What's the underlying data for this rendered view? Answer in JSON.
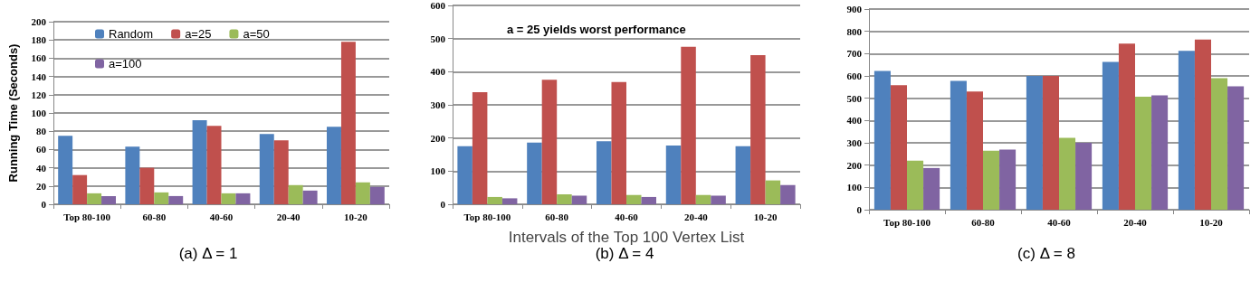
{
  "chart_data": [
    {
      "type": "bar",
      "title": "(a) Δ = 1",
      "ylabel": "Running Time (Seconds)",
      "categories": [
        "Top 80-100",
        "60-80",
        "40-60",
        "20-40",
        "10-20"
      ],
      "ylim": [
        0,
        200
      ],
      "yticks": [
        0,
        20,
        40,
        60,
        80,
        100,
        120,
        140,
        160,
        180,
        200
      ],
      "grid": "y",
      "legend": "top",
      "series": [
        {
          "name": "Random",
          "color": "#4f81bd",
          "values": [
            75,
            63,
            92,
            77,
            85
          ]
        },
        {
          "name": "a=25",
          "color": "#c0504d",
          "values": [
            32,
            40,
            86,
            70,
            178
          ]
        },
        {
          "name": "a=50",
          "color": "#9bbb59",
          "values": [
            12,
            13,
            12,
            21,
            24
          ]
        },
        {
          "name": "a=100",
          "color": "#8064a2",
          "values": [
            9,
            9,
            12,
            15,
            19
          ]
        }
      ]
    },
    {
      "type": "bar",
      "title": "(b) Δ = 4",
      "xlabel": "Intervals of the Top 100 Vertex List",
      "annotations": [
        "a = 25 yields worst performance"
      ],
      "categories": [
        "Top 80-100",
        "60-80",
        "40-60",
        "20-40",
        "10-20"
      ],
      "ylim": [
        0,
        600
      ],
      "yticks": [
        0,
        100,
        200,
        300,
        400,
        500,
        600
      ],
      "grid": "y",
      "series": [
        {
          "color": "#4f81bd",
          "values": [
            175,
            186,
            190,
            177,
            175
          ]
        },
        {
          "color": "#c0504d",
          "values": [
            338,
            376,
            369,
            475,
            450
          ]
        },
        {
          "color": "#9bbb59",
          "values": [
            22,
            30,
            28,
            28,
            72
          ]
        },
        {
          "color": "#8064a2",
          "values": [
            18,
            26,
            22,
            26,
            58
          ]
        }
      ]
    },
    {
      "type": "bar",
      "title": "(c) Δ = 8",
      "categories": [
        "Top 80-100",
        "60-80",
        "40-60",
        "20-40",
        "10-20"
      ],
      "ylim": [
        0,
        900
      ],
      "yticks": [
        0,
        100,
        200,
        300,
        400,
        500,
        600,
        700,
        800,
        900
      ],
      "grid": "y",
      "series": [
        {
          "color": "#4f81bd",
          "values": [
            622,
            578,
            600,
            663,
            713
          ]
        },
        {
          "color": "#c0504d",
          "values": [
            558,
            530,
            600,
            745,
            763
          ]
        },
        {
          "color": "#9bbb59",
          "values": [
            220,
            265,
            322,
            507,
            590
          ]
        },
        {
          "color": "#8064a2",
          "values": [
            187,
            270,
            300,
            513,
            553
          ]
        }
      ]
    }
  ]
}
